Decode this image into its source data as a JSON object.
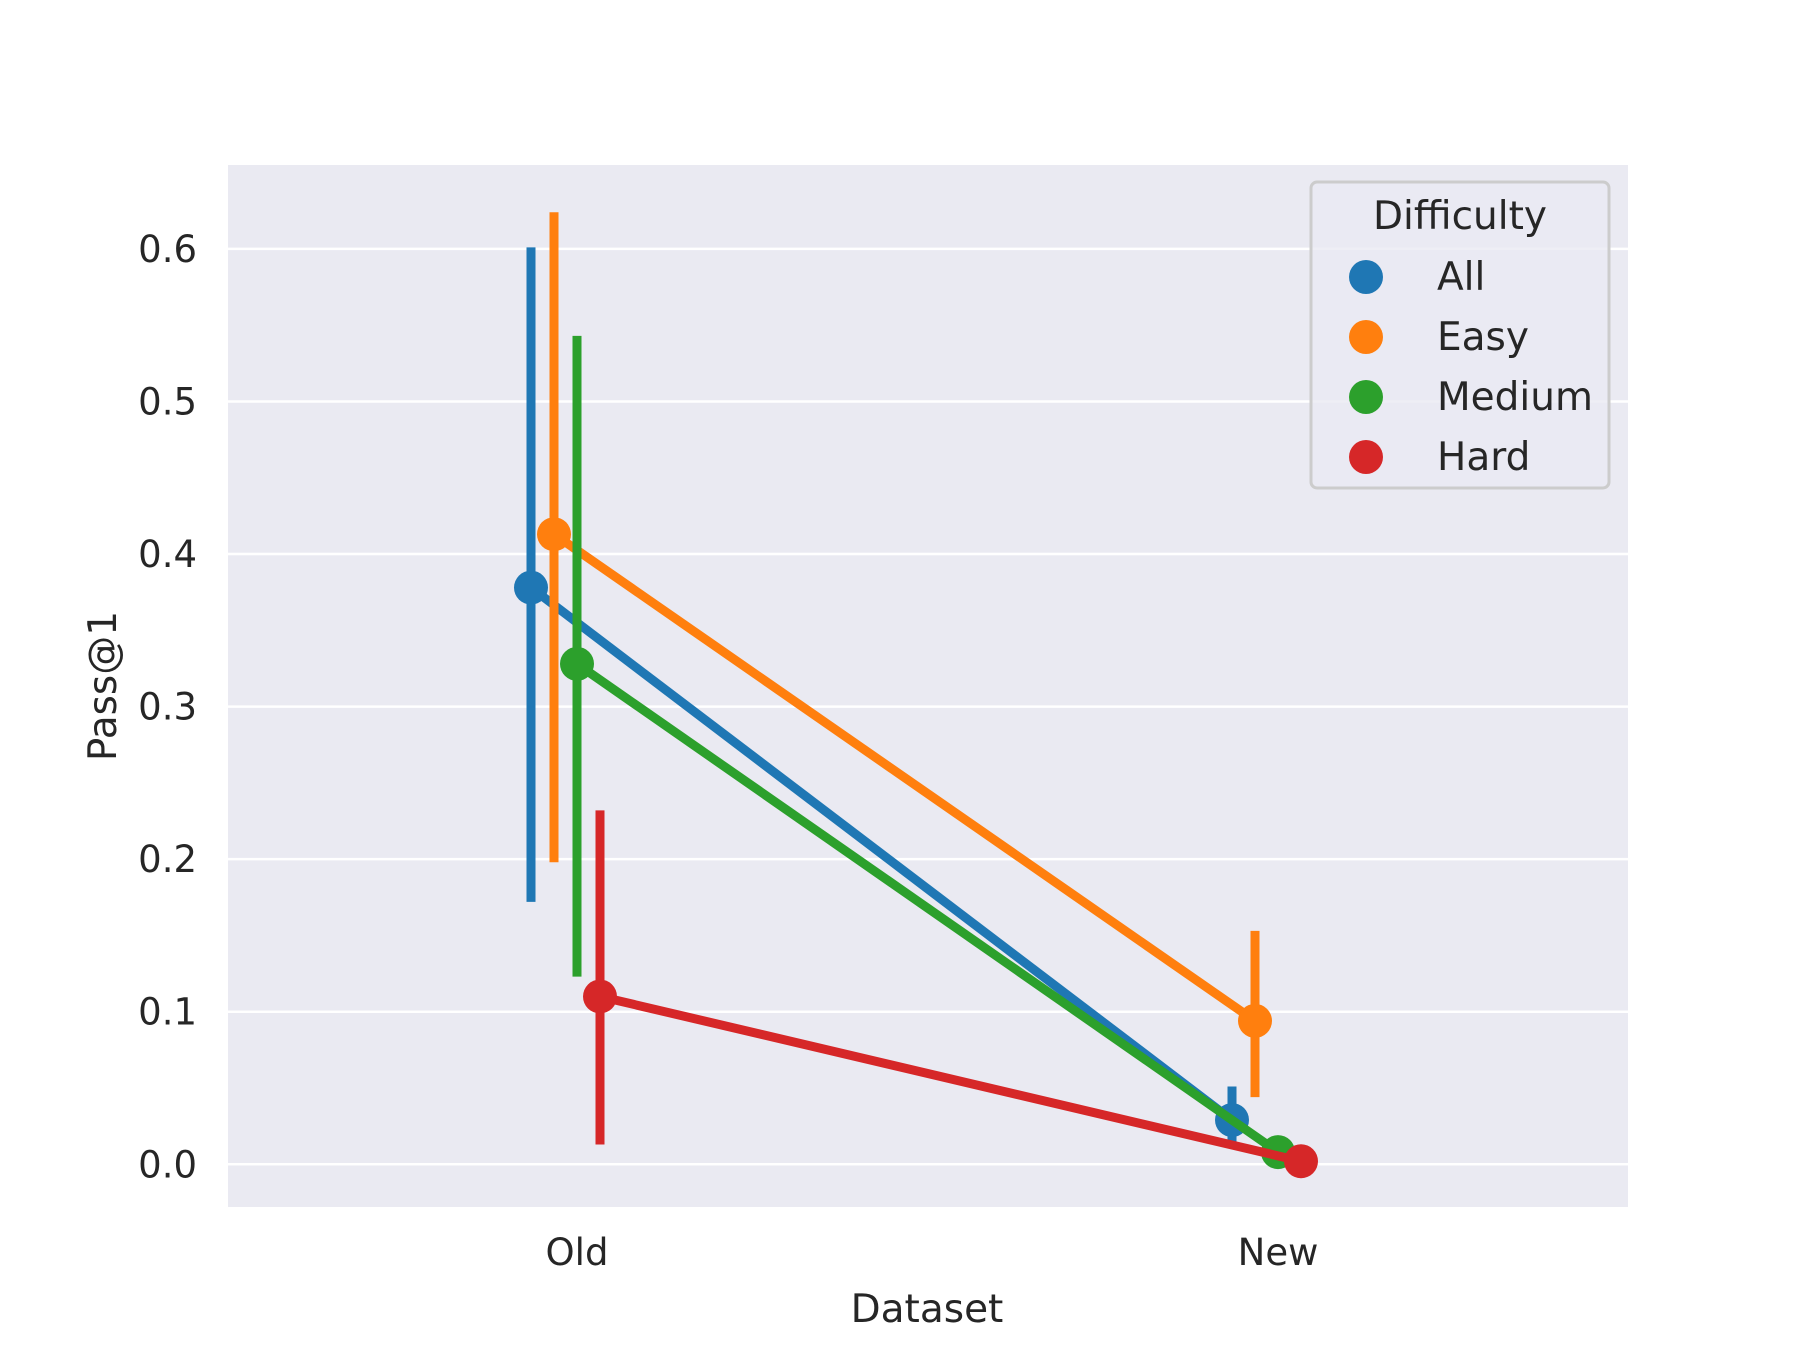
{
  "chart_data": {
    "type": "line",
    "x_categories": [
      "Old",
      "New"
    ],
    "xlabel": "Dataset",
    "ylabel": "Pass@1",
    "ylim": [
      -0.028,
      0.655
    ],
    "yticks": [
      0.0,
      0.1,
      0.2,
      0.3,
      0.4,
      0.5,
      0.6
    ],
    "ytick_labels": [
      "0.0",
      "0.1",
      "0.2",
      "0.3",
      "0.4",
      "0.5",
      "0.6"
    ],
    "grid": true,
    "legend": {
      "title": "Difficulty",
      "position": "top-right"
    },
    "series": [
      {
        "name": "All",
        "color": "#1f77b4",
        "values": [
          0.378,
          0.029
        ],
        "ci_low": [
          0.172,
          0.011
        ],
        "ci_high": [
          0.601,
          0.051
        ]
      },
      {
        "name": "Easy",
        "color": "#ff7f0e",
        "values": [
          0.413,
          0.094
        ],
        "ci_low": [
          0.198,
          0.044
        ],
        "ci_high": [
          0.624,
          0.153
        ]
      },
      {
        "name": "Medium",
        "color": "#2ca02c",
        "values": [
          0.328,
          0.008
        ],
        "ci_low": [
          0.123,
          0.0
        ],
        "ci_high": [
          0.543,
          0.017
        ]
      },
      {
        "name": "Hard",
        "color": "#d62728",
        "values": [
          0.11,
          0.002
        ],
        "ci_low": [
          0.013,
          0.0
        ],
        "ci_high": [
          0.232,
          0.005
        ]
      }
    ]
  }
}
